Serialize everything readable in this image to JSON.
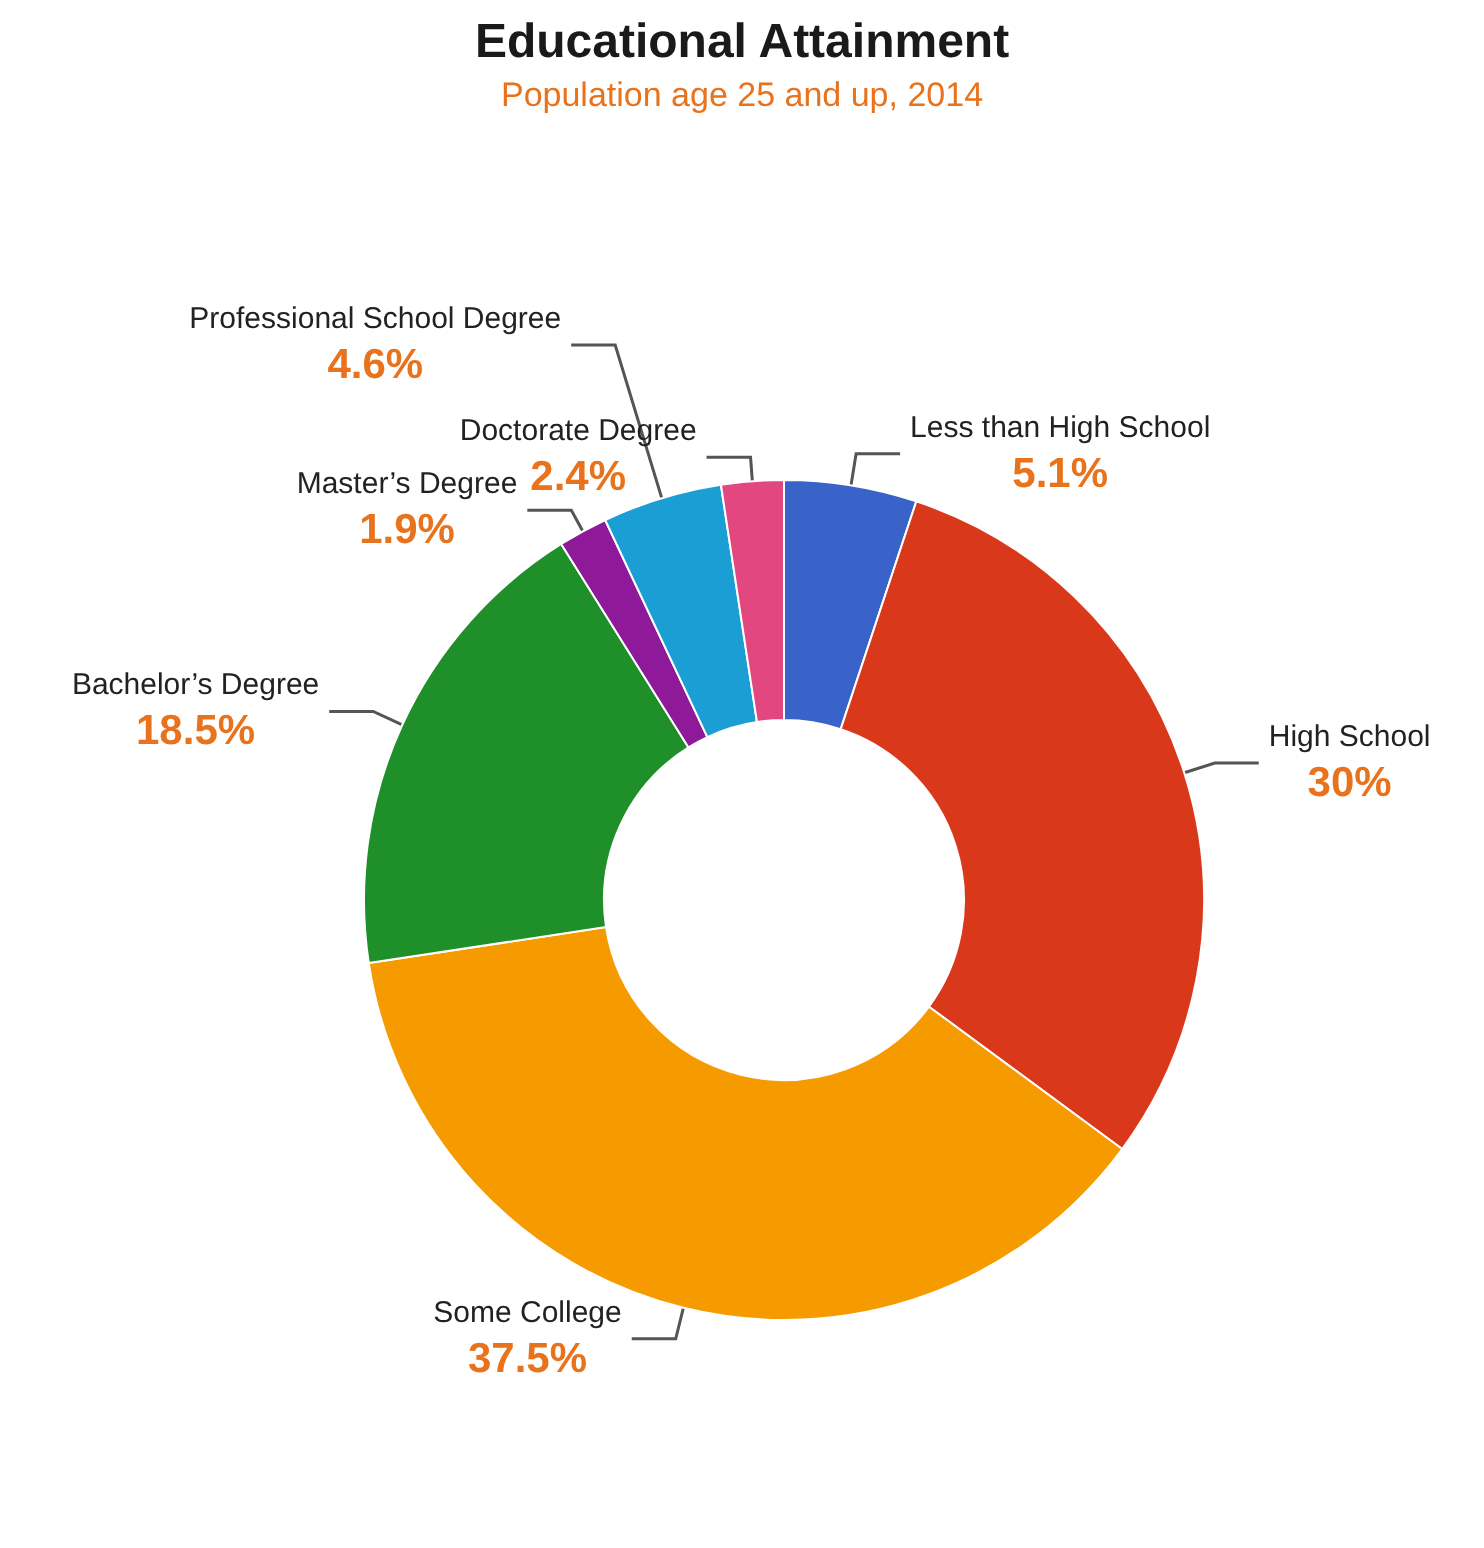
{
  "chart_data": {
    "type": "donut",
    "title": "Educational Attainment",
    "subtitle": "Population age 25 and up, 2014",
    "categories": [
      "Less than High School",
      "High School",
      "Some College",
      "Bachelor’s Degree",
      "Master’s Degree",
      "Professional School Degree",
      "Doctorate Degree"
    ],
    "values": [
      5.1,
      30,
      37.5,
      18.5,
      1.9,
      4.6,
      2.4
    ],
    "colors": [
      "#3a63c9",
      "#d9391a",
      "#f59b00",
      "#1f8f2a",
      "#8e1a9a",
      "#1a9ed4",
      "#e2487f"
    ],
    "value_labels": [
      "5.1%",
      "30%",
      "37.5%",
      "18.5%",
      "1.9%",
      "4.6%",
      "2.4%"
    ],
    "legend": false
  }
}
